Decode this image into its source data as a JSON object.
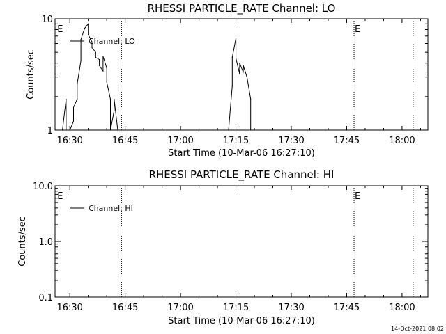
{
  "colors": {
    "background": "#ffffff",
    "foreground": "#000000"
  },
  "footer": {
    "timestamp": "14-Oct-2021 08:02"
  },
  "chart_data": [
    {
      "type": "line",
      "title": "RHESSI PARTICLE_RATE Channel: LO",
      "xlabel": "Start Time (10-Mar-06 16:27:10)",
      "ylabel": "Counts/sec",
      "yscale": "log",
      "xlim": [
        "16:26",
        "18:07"
      ],
      "ylim": [
        1,
        10
      ],
      "x_tick_labels": [
        "16:30",
        "16:45",
        "17:00",
        "17:15",
        "17:30",
        "17:45",
        "18:00"
      ],
      "y_tick_labels": [
        "1",
        "10"
      ],
      "legend": {
        "label": "Channel: LO",
        "placement": "top-left"
      },
      "event_lines": [
        {
          "time": "16:44",
          "label": ""
        },
        {
          "time": "17:47",
          "label": "E"
        },
        {
          "time": "18:03",
          "label": ""
        }
      ],
      "start_marker": {
        "time": "16:27",
        "label": "E"
      },
      "series": [
        {
          "x": [
            "16:28",
            "16:29",
            "16:29",
            "16:30",
            "16:30",
            "16:31",
            "16:31",
            "16:32",
            "16:32",
            "16:33",
            "16:33",
            "16:34",
            "16:35",
            "16:35",
            "16:36",
            "16:36",
            "16:37",
            "16:37",
            "16:38",
            "16:38",
            "16:39",
            "16:39",
            "16:40",
            "16:40",
            "16:41",
            "16:41",
            "16:42",
            "16:42",
            "16:43",
            "16:43",
            "17:13",
            "17:14",
            "17:14",
            "17:15",
            "17:15",
            "17:15",
            "17:16",
            "17:16",
            "17:17",
            "17:17",
            "17:18",
            "17:18",
            "17:19",
            "17:19",
            "17:20"
          ],
          "y": [
            1.0,
            1.9,
            1.0,
            1.0,
            1.0,
            1.2,
            1.6,
            1.9,
            2.6,
            4.2,
            6.5,
            8.2,
            9.0,
            7.2,
            6.2,
            5.5,
            5.0,
            4.5,
            4.3,
            3.8,
            3.4,
            4.6,
            3.6,
            2.7,
            1.9,
            1.0,
            1.5,
            1.9,
            1.0,
            1.0,
            1.0,
            2.5,
            4.5,
            6.7,
            5.5,
            4.4,
            3.2,
            4.0,
            3.3,
            3.8,
            3.0,
            3.0,
            1.9,
            1.0,
            1.0
          ]
        }
      ]
    },
    {
      "type": "line",
      "title": "RHESSI PARTICLE_RATE Channel: HI",
      "xlabel": "Start Time (10-Mar-06 16:27:10)",
      "ylabel": "Counts/sec",
      "yscale": "log",
      "xlim": [
        "16:26",
        "18:07"
      ],
      "ylim": [
        0.1,
        10.0
      ],
      "x_tick_labels": [
        "16:30",
        "16:45",
        "17:00",
        "17:15",
        "17:30",
        "17:45",
        "18:00"
      ],
      "y_tick_labels": [
        "0.1",
        "1.0",
        "10.0"
      ],
      "legend": {
        "label": "Channel: HI",
        "placement": "top-left"
      },
      "event_lines": [
        {
          "time": "16:44",
          "label": ""
        },
        {
          "time": "17:47",
          "label": "E"
        },
        {
          "time": "18:03",
          "label": ""
        }
      ],
      "start_marker": {
        "time": "16:27",
        "label": "E"
      },
      "series": []
    }
  ]
}
